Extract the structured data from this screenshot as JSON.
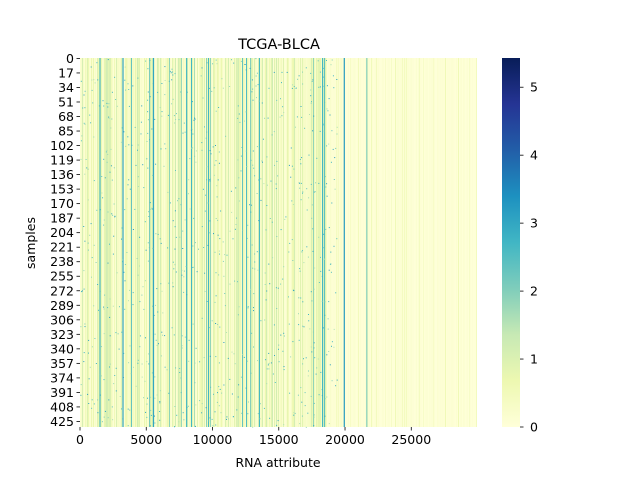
{
  "chart_data": {
    "type": "heatmap",
    "title": "TCGA-BLCA",
    "xlabel": "RNA attribute",
    "ylabel": "samples",
    "n_rows": 432,
    "n_cols": 29960,
    "xlim": [
      0,
      29960
    ],
    "ylim": [
      0,
      432
    ],
    "x_ticks": [
      0,
      5000,
      10000,
      15000,
      20000,
      25000
    ],
    "y_ticks": [
      0,
      17,
      34,
      51,
      68,
      85,
      102,
      119,
      136,
      153,
      170,
      187,
      204,
      221,
      238,
      255,
      272,
      289,
      306,
      323,
      340,
      357,
      374,
      391,
      408,
      425
    ],
    "colormap": "YlGnBu",
    "colormap_stops": [
      "#ffffd9",
      "#edf8b1",
      "#c7e9b4",
      "#7fcdbb",
      "#41b6c4",
      "#1d91c0",
      "#225ea8",
      "#253494",
      "#081d58"
    ],
    "vmin": 0,
    "vmax": 5.43,
    "colorbar_ticks": [
      0,
      1,
      2,
      3,
      4,
      5
    ],
    "dense_region_end_col": 18500,
    "highlighted_columns": [
      {
        "col": 19900,
        "value": 3.2
      },
      {
        "col": 21600,
        "value": 2.0
      },
      {
        "col": 18400,
        "value": 2.4
      },
      {
        "col": 5500,
        "value": 3.0
      },
      {
        "col": 3200,
        "value": 3.0
      },
      {
        "col": 8000,
        "value": 2.6
      }
    ]
  }
}
